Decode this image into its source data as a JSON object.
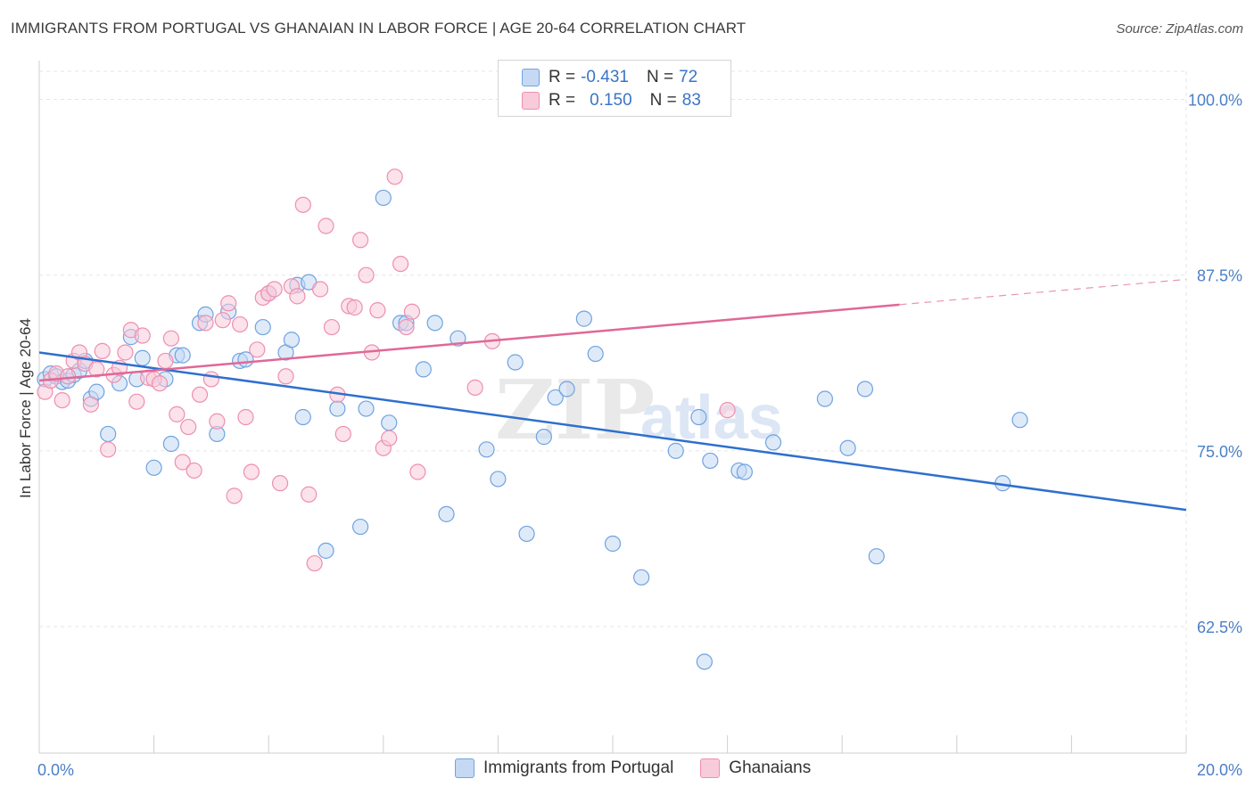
{
  "title": "IMMIGRANTS FROM PORTUGAL VS GHANAIAN IN LABOR FORCE | AGE 20-64 CORRELATION CHART",
  "source": "Source: ZipAtlas.com",
  "watermark": {
    "zip": "ZIP",
    "atlas": "atlas"
  },
  "legend": {
    "rows": [
      {
        "r_label": "R =",
        "r_value": "-0.431",
        "n_label": "N =",
        "n_value": "72",
        "color": "#a9c8f0"
      },
      {
        "r_label": "R =",
        "r_value": "0.150",
        "n_label": "N =",
        "n_value": "83",
        "color": "#f5b3c8"
      }
    ]
  },
  "bottom_legend": [
    {
      "label": "Immigrants from Portugal",
      "color": "#a9c8f0"
    },
    {
      "label": "Ghanaians",
      "color": "#f5b3c8"
    }
  ],
  "chart_data": {
    "type": "scatter",
    "ylabel": "In Labor Force | Age 20-64",
    "xlim": [
      0,
      20
    ],
    "ylim": [
      53.5,
      102
    ],
    "x_tick_labels": [
      "0.0%",
      "20.0%"
    ],
    "y_ticks": [
      62.5,
      75.0,
      87.5,
      100.0
    ],
    "y_tick_labels": [
      "62.5%",
      "75.0%",
      "87.5%",
      "100.0%"
    ],
    "grid": true,
    "series": [
      {
        "name": "Immigrants from Portugal",
        "color": "#6fa3e0",
        "fill": "#c5d9f4",
        "line_color": "#2e6fce",
        "trend": {
          "x0": 0,
          "y0": 82.0,
          "x1": 20,
          "y1": 70.8
        },
        "points": [
          [
            0.1,
            80.1
          ],
          [
            0.2,
            80.5
          ],
          [
            0.3,
            80.3
          ],
          [
            0.4,
            79.9
          ],
          [
            0.5,
            80.0
          ],
          [
            0.6,
            80.4
          ],
          [
            0.7,
            80.7
          ],
          [
            0.8,
            81.4
          ],
          [
            0.9,
            78.7
          ],
          [
            1.0,
            79.2
          ],
          [
            1.2,
            76.2
          ],
          [
            1.4,
            79.8
          ],
          [
            1.6,
            83.1
          ],
          [
            1.7,
            80.1
          ],
          [
            1.8,
            81.6
          ],
          [
            2.0,
            73.8
          ],
          [
            2.2,
            80.1
          ],
          [
            2.3,
            75.5
          ],
          [
            2.4,
            81.8
          ],
          [
            2.5,
            81.8
          ],
          [
            2.8,
            84.1
          ],
          [
            2.9,
            84.7
          ],
          [
            3.1,
            76.2
          ],
          [
            3.3,
            84.9
          ],
          [
            3.5,
            81.4
          ],
          [
            3.6,
            81.5
          ],
          [
            3.9,
            83.8
          ],
          [
            4.0,
            86.2
          ],
          [
            4.3,
            82.0
          ],
          [
            4.4,
            82.9
          ],
          [
            4.5,
            86.8
          ],
          [
            4.6,
            77.4
          ],
          [
            4.7,
            87.0
          ],
          [
            5.0,
            67.9
          ],
          [
            5.2,
            78.0
          ],
          [
            5.6,
            69.6
          ],
          [
            5.7,
            78.0
          ],
          [
            6.0,
            93.0
          ],
          [
            6.1,
            77.0
          ],
          [
            6.3,
            84.1
          ],
          [
            6.4,
            84.1
          ],
          [
            6.7,
            80.8
          ],
          [
            6.9,
            84.1
          ],
          [
            7.1,
            70.5
          ],
          [
            7.3,
            83.0
          ],
          [
            7.8,
            75.1
          ],
          [
            8.0,
            73.0
          ],
          [
            8.3,
            81.3
          ],
          [
            8.5,
            69.1
          ],
          [
            8.8,
            76.0
          ],
          [
            9.0,
            78.8
          ],
          [
            9.2,
            79.4
          ],
          [
            9.5,
            84.4
          ],
          [
            9.7,
            81.9
          ],
          [
            10.0,
            68.4
          ],
          [
            10.5,
            66.0
          ],
          [
            11.1,
            75.0
          ],
          [
            11.5,
            77.4
          ],
          [
            11.6,
            60.0
          ],
          [
            11.7,
            74.3
          ],
          [
            12.2,
            73.6
          ],
          [
            12.3,
            73.5
          ],
          [
            12.8,
            75.6
          ],
          [
            13.7,
            78.7
          ],
          [
            14.1,
            75.2
          ],
          [
            14.4,
            79.4
          ],
          [
            14.6,
            67.5
          ],
          [
            16.8,
            72.7
          ],
          [
            17.1,
            77.2
          ]
        ]
      },
      {
        "name": "Ghanaians",
        "color": "#ee8fae",
        "fill": "#f8cbda",
        "line_color": "#e06896",
        "trend": {
          "x0": 0,
          "y0": 80.0,
          "x1": 20,
          "y1": 87.2
        },
        "trend_solid_to": 15,
        "points": [
          [
            0.1,
            79.2
          ],
          [
            0.2,
            80.0
          ],
          [
            0.3,
            80.5
          ],
          [
            0.4,
            78.6
          ],
          [
            0.5,
            80.3
          ],
          [
            0.6,
            81.4
          ],
          [
            0.7,
            82.0
          ],
          [
            0.8,
            81.2
          ],
          [
            0.9,
            78.3
          ],
          [
            1.0,
            80.8
          ],
          [
            1.1,
            82.1
          ],
          [
            1.2,
            75.1
          ],
          [
            1.3,
            80.4
          ],
          [
            1.4,
            80.9
          ],
          [
            1.5,
            82.0
          ],
          [
            1.6,
            83.6
          ],
          [
            1.7,
            78.5
          ],
          [
            1.8,
            83.2
          ],
          [
            1.9,
            80.2
          ],
          [
            2.0,
            80.1
          ],
          [
            2.1,
            79.8
          ],
          [
            2.2,
            81.4
          ],
          [
            2.3,
            83.0
          ],
          [
            2.4,
            77.6
          ],
          [
            2.5,
            74.2
          ],
          [
            2.6,
            76.7
          ],
          [
            2.7,
            73.6
          ],
          [
            2.8,
            79.0
          ],
          [
            2.9,
            84.1
          ],
          [
            3.0,
            80.1
          ],
          [
            3.1,
            77.1
          ],
          [
            3.2,
            84.3
          ],
          [
            3.3,
            85.5
          ],
          [
            3.4,
            71.8
          ],
          [
            3.5,
            84.0
          ],
          [
            3.6,
            77.4
          ],
          [
            3.7,
            73.5
          ],
          [
            3.8,
            82.2
          ],
          [
            3.9,
            85.9
          ],
          [
            4.0,
            86.2
          ],
          [
            4.1,
            86.5
          ],
          [
            4.2,
            72.7
          ],
          [
            4.3,
            80.3
          ],
          [
            4.4,
            86.7
          ],
          [
            4.5,
            86.0
          ],
          [
            4.6,
            92.5
          ],
          [
            4.7,
            71.9
          ],
          [
            4.8,
            67.0
          ],
          [
            4.9,
            86.5
          ],
          [
            5.0,
            91.0
          ],
          [
            5.1,
            83.8
          ],
          [
            5.2,
            79.0
          ],
          [
            5.3,
            76.2
          ],
          [
            5.4,
            85.3
          ],
          [
            5.5,
            85.2
          ],
          [
            5.6,
            90.0
          ],
          [
            5.7,
            87.5
          ],
          [
            5.8,
            82.0
          ],
          [
            5.9,
            85.0
          ],
          [
            6.0,
            75.2
          ],
          [
            6.1,
            75.9
          ],
          [
            6.2,
            94.5
          ],
          [
            6.3,
            88.3
          ],
          [
            6.4,
            83.8
          ],
          [
            6.5,
            84.9
          ],
          [
            6.6,
            73.5
          ],
          [
            7.6,
            79.5
          ],
          [
            7.9,
            82.8
          ],
          [
            12.0,
            77.9
          ]
        ]
      }
    ]
  }
}
